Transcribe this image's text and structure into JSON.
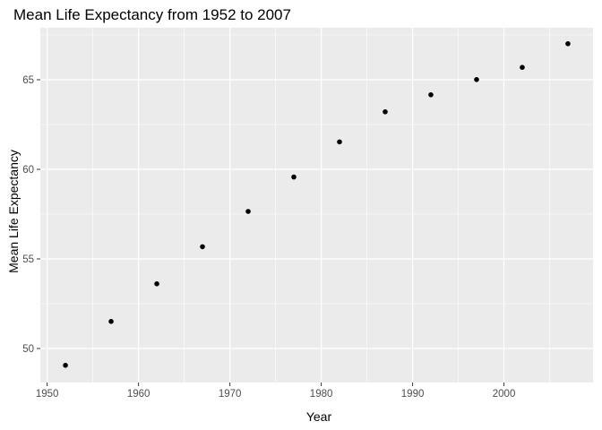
{
  "chart_data": {
    "type": "scatter",
    "title": "Mean Life Expectancy from 1952 to 2007",
    "xlabel": "Year",
    "ylabel": "Mean Life Expectancy",
    "xlim": [
      1949.25,
      2009.75
    ],
    "ylim": [
      48.1,
      67.9
    ],
    "xticks": [
      1950,
      1960,
      1970,
      1980,
      1990,
      2000
    ],
    "yticks": [
      50,
      55,
      60,
      65
    ],
    "x_tick_labels": [
      "1950",
      "1960",
      "1970",
      "1980",
      "1990",
      "2000"
    ],
    "y_tick_labels": [
      "50",
      "55",
      "60",
      "65"
    ],
    "grid": true,
    "legend": "none",
    "colors": {
      "panel": "#ebebeb",
      "grid": "#ffffff",
      "point": "#000000",
      "tick": "#333333"
    },
    "series": [
      {
        "x": [
          1952,
          1957,
          1962,
          1967,
          1972,
          1977,
          1982,
          1987,
          1992,
          1997,
          2002,
          2007
        ],
        "y": [
          49.06,
          51.51,
          53.61,
          55.68,
          57.65,
          59.57,
          61.53,
          63.21,
          64.16,
          65.01,
          65.69,
          67.01
        ]
      }
    ]
  }
}
